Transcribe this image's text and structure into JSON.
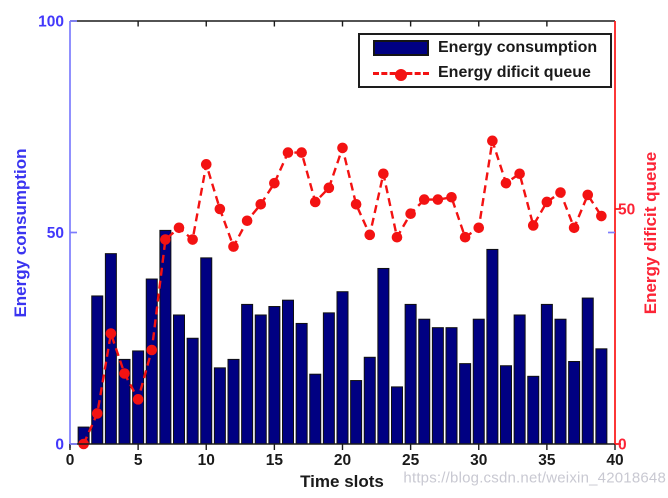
{
  "watermark": "https://blog.csdn.net/weixin_42018648",
  "colors": {
    "bar_fill": "#000082",
    "bar_edge": "#101010",
    "line_red": "#f31212",
    "left_axis_line": "#7d7dfe",
    "left_text": "#4238fb",
    "right_axis_line": "#fb1414",
    "right_text": "#fc2436",
    "black_axis": "#1a1a1a",
    "background": "#ffffff"
  },
  "chart_data": {
    "type": "bar",
    "subtype": "dual-axis bar + dashed line with circle markers",
    "title": "",
    "xlabel": "Time slots",
    "ylabel_left": "Energy consumption",
    "ylabel_right": "Energy dificit queue",
    "xlim": [
      0,
      40
    ],
    "ylim_left": [
      0,
      100
    ],
    "ylim_right": [
      0,
      90
    ],
    "xticks": [
      0,
      5,
      10,
      15,
      20,
      25,
      30,
      35,
      40
    ],
    "yticks_left": [
      0,
      50,
      100
    ],
    "yticks_right": [
      0,
      50
    ],
    "grid": "off",
    "legend_position": "top-right",
    "x": [
      1,
      2,
      3,
      4,
      5,
      6,
      7,
      8,
      9,
      10,
      11,
      12,
      13,
      14,
      15,
      16,
      17,
      18,
      19,
      20,
      21,
      22,
      23,
      24,
      25,
      26,
      27,
      28,
      29,
      30,
      31,
      32,
      33,
      34,
      35,
      36,
      37,
      38,
      39
    ],
    "series": [
      {
        "name": "Energy consumption",
        "type": "bar",
        "axis": "left",
        "color": "#000082",
        "values": [
          4,
          35,
          45,
          20,
          22,
          39,
          50.5,
          30.5,
          25,
          44,
          18,
          20,
          33,
          30.5,
          32.5,
          34,
          28.5,
          16.5,
          31,
          36,
          15,
          20.5,
          41.5,
          13.5,
          33,
          29.5,
          27.5,
          27.5,
          19,
          29.5,
          46,
          18.5,
          30.5,
          16,
          33,
          29.5,
          19.5,
          34.5,
          22.5
        ]
      },
      {
        "name": "Energy dificit queue",
        "type": "line",
        "axis": "right",
        "style": "dashed",
        "marker": "filled-circle",
        "color": "#f31212",
        "values": [
          0,
          6.5,
          23.5,
          15,
          9.5,
          20,
          43.5,
          46,
          43.5,
          59.5,
          50,
          42,
          47.5,
          51,
          55.5,
          62,
          62,
          51.5,
          54.5,
          63,
          51,
          44.5,
          57.5,
          44,
          49,
          52,
          52,
          52.5,
          44,
          46,
          64.5,
          55.5,
          57.5,
          46.5,
          51.5,
          53.5,
          46,
          53,
          48.5
        ]
      }
    ]
  }
}
